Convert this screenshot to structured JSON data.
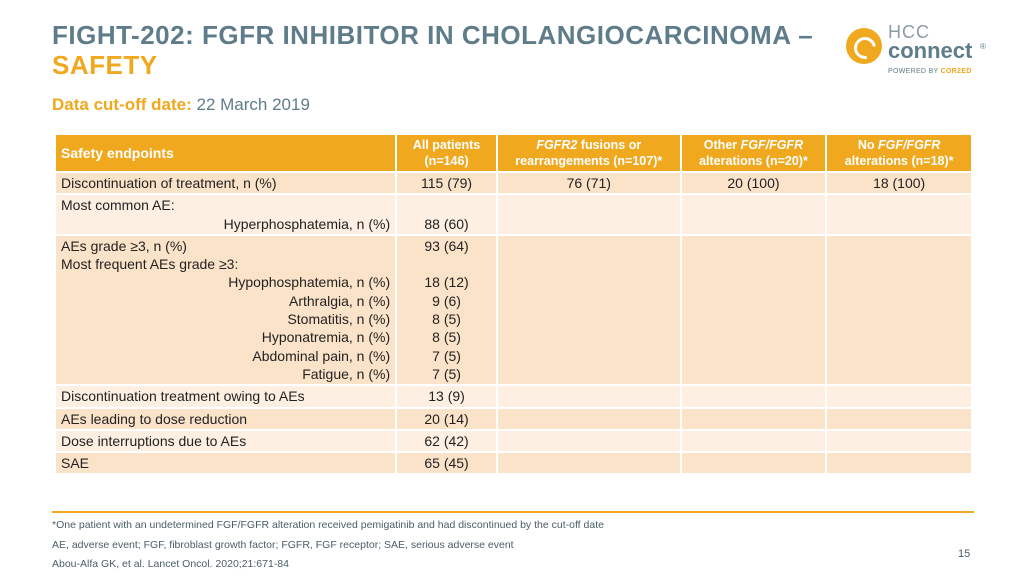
{
  "title_main": "FIGHT-202: FGFR INHIBITOR IN CHOLANGIOCARCINOMA – ",
  "title_accent": "SAFETY",
  "subtitle_label": "Data cut-off date:",
  "subtitle_value": " 22 March 2019",
  "logo": {
    "hcc": "HCC",
    "connect": "connect",
    "reg": "®",
    "powered_prefix": "POWERED BY ",
    "powered_brand": "COR2ED"
  },
  "table": {
    "headers": {
      "col0": "Safety endpoints",
      "col1a": "All patients",
      "col1b": "(n=146)",
      "col2a_italic": "FGFR2",
      "col2a_rest": " fusions or",
      "col2b": "rearrangements (n=107)*",
      "col3a_pre": "Other ",
      "col3a_italic": "FGF/FGFR",
      "col3b": "alterations (n=20)*",
      "col4a_pre": "No ",
      "col4a_italic": "FGF/FGFR",
      "col4b": "alterations (n=18)*"
    },
    "row_discontinuation": {
      "label": "Discontinuation of treatment, n (%)",
      "all": "115 (79)",
      "fgfr2": "76 (71)",
      "other": "20 (100)",
      "none": "18 (100)"
    },
    "row_common": {
      "heading": "Most common AE:",
      "item": "Hyperphosphatemia, n (%)",
      "value": "88 (60)"
    },
    "row_grade3": {
      "label": "AEs grade ≥3, n (%)",
      "value": "93 (64)",
      "subheading": "Most frequent AEs grade ≥3:",
      "items": [
        {
          "label": "Hypophosphatemia, n (%)",
          "value": "18 (12)"
        },
        {
          "label": "Arthralgia, n (%)",
          "value": "9 (6)"
        },
        {
          "label": "Stomatitis, n (%)",
          "value": "8 (5)"
        },
        {
          "label": "Hyponatremia, n (%)",
          "value": "8 (5)"
        },
        {
          "label": "Abdominal pain, n (%)",
          "value": "7 (5)"
        },
        {
          "label": "Fatigue, n (%)",
          "value": "7 (5)"
        }
      ]
    },
    "row_disc_ae": {
      "label": "Discontinuation treatment owing to AEs",
      "value": "13 (9)"
    },
    "row_dose_red": {
      "label": "AEs leading to dose reduction",
      "value": "20 (14)"
    },
    "row_dose_int": {
      "label": "Dose interruptions due to AEs",
      "value": "62 (42)"
    },
    "row_sae": {
      "label": "SAE",
      "value": "65 (45)"
    }
  },
  "footnotes": {
    "note1": "*One patient with an undetermined FGF/FGFR alteration received pemigatinib and had discontinued by the cut-off date",
    "note2": "AE, adverse event; FGF, fibroblast growth factor; FGFR, FGF receptor; SAE, serious adverse event",
    "note3": "Abou-Alfa GK, et al. Lancet Oncol. 2020;21:671-84"
  },
  "page_number": "15"
}
